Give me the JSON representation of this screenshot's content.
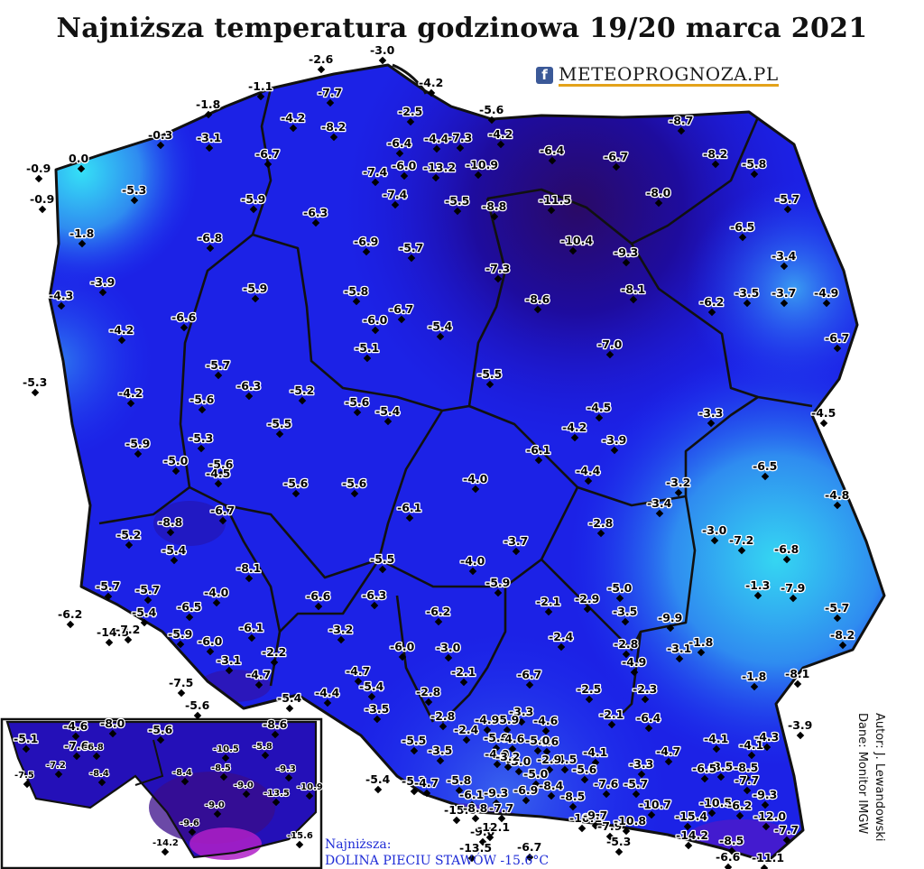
{
  "title": "Najniższa temperatura godzinowa 19/20 marca 2021",
  "logo": {
    "icon": "facebook-icon",
    "fb_glyph": "f",
    "text": "METEOPROGNOZA.PL"
  },
  "credit": {
    "author": "Autor: J. Lewandowski",
    "source": "Dane: Monitor IMGW"
  },
  "lowest": {
    "label": "Najniższa:",
    "value": "DOLINA PIECIU STAWÓW -15.6°C"
  },
  "colors": {
    "deep_purple": "#2a0a66",
    "dark_blue": "#1a0ad0",
    "blue": "#1d34f2",
    "light_blue": "#2f8cf0",
    "cyan": "#35d6f2",
    "magenta": "#b020c8",
    "border": "#111111"
  },
  "readings": [
    "-3.0",
    "-2.6",
    "-4.2",
    "-1.1",
    "-7.7",
    "-2.5",
    "-1.8",
    "-4.2",
    "-8.2",
    "-5.6",
    "-0.3",
    "-3.1",
    "-6.4",
    "-4.4",
    "-7.3",
    "-4.2",
    "-8.7",
    "-0.9",
    "0.0",
    "-6.7",
    "-8.2",
    "-5.8",
    "-7.4",
    "-6.0",
    "-13.2",
    "-10.9",
    "-6.4",
    "-6.7",
    "-5.3",
    "-0.9",
    "-5.9",
    "-7.4",
    "-5.5",
    "-8.8",
    "-11.5",
    "-8.0",
    "-5.7",
    "-6.3",
    "-1.8",
    "-6.8",
    "-6.9",
    "-5.7",
    "-10.4",
    "-9.3",
    "-6.5",
    "-3.4",
    "-3.9",
    "-7.3",
    "-4.3",
    "-5.9",
    "-5.8",
    "-6.7",
    "-8.6",
    "-8.1",
    "-6.2",
    "-3.5",
    "-3.7",
    "-4.9",
    "-6.6",
    "-6.0",
    "-5.4",
    "-4.2",
    "-6.7",
    "-5.1",
    "-7.0",
    "-5.7",
    "-5.3",
    "-5.5",
    "-6.3",
    "-5.2",
    "-4.2",
    "-5.6",
    "-5.6",
    "-5.4",
    "-4.5",
    "-3.3",
    "-4.5",
    "-4.2",
    "-3.9",
    "-5.5",
    "-5.3",
    "-5.9",
    "-6.1",
    "-5.0",
    "-4.4",
    "-5.6",
    "-6.5",
    "-4.5",
    "-5.6",
    "-5.6",
    "-3.2",
    "-3.4",
    "-4.8",
    "-6.7",
    "-8.8",
    "-6.1",
    "-4.0",
    "-2.8",
    "-3.0",
    "-7.2",
    "-5.2",
    "-5.4",
    "-3.7",
    "-6.8",
    "-8.1",
    "-5.5",
    "-4.0",
    "-2.9",
    "-1.3",
    "-7.9",
    "-5.7",
    "-5.7",
    "-6.2",
    "-5.9",
    "-6.3",
    "-6.2",
    "-4.0",
    "-2.1",
    "-5.7",
    "-6.6",
    "-6.5",
    "-5.0",
    "-3.5",
    "-9.9",
    "-14.5",
    "-7.2",
    "-5.4",
    "-3.2",
    "-2.4",
    "-8.2",
    "-5.9",
    "-6.1",
    "-6.0",
    "-3.0",
    "-2.8",
    "-3.1",
    "-6.0",
    "-3.1",
    "-4.9",
    "-2.2",
    "-1.8",
    "-1.8",
    "-8.1",
    "-7.5",
    "-4.7",
    "-4.7",
    "-6.7",
    "-2.1",
    "-2.5",
    "-2.3",
    "-6.4",
    "-5.6",
    "-5.4",
    "-4.4",
    "-5.4",
    "-2.8",
    "-3.3",
    "-3.9",
    "-3.5",
    "-4.6",
    "-2.8",
    "-5.9",
    "-2.1",
    "-4.1",
    "-4.9",
    "-2.4",
    "-4.1",
    "-4.3",
    "-5.6",
    "-4.6",
    "-4.6",
    "-5.5",
    "-4.0",
    "-3.0",
    "-5.0",
    "-4.1",
    "-4.5",
    "-3.5",
    "-3.2",
    "-2.9",
    "-3.3",
    "-4.7",
    "-3.5",
    "-6.5",
    "-5.4",
    "-8.5",
    "-5.1",
    "-4.7",
    "-5.8",
    "-5.6",
    "-5.0",
    "-7.7",
    "-6.1",
    "-9.3",
    "-6.9",
    "-7.6",
    "-10.5",
    "-8.4",
    "-8.5",
    "-5.7",
    "-9.3",
    "-15.0",
    "-8.8",
    "-7.7",
    "-10.1",
    "-9.7",
    "-7.9",
    "-9.0",
    "-10.7",
    "-6.2",
    "-12.0",
    "-12.1",
    "-10.8",
    "-15.4",
    "-14.2",
    "-8.5",
    "-7.7",
    "-13.5",
    "-6.7",
    "-5.3",
    "-6.6",
    "-11.1",
    "-5.1",
    "-4.6",
    "-8.0",
    "-5.6",
    "-8.6",
    "-7.6",
    "-6.8",
    "-10.5",
    "-5.8",
    "-7.5",
    "-7.2",
    "-8.4",
    "-8.4",
    "-8.5",
    "-9.3",
    "-9.0",
    "-13.5",
    "-10.9",
    "-9.0",
    "-9.6",
    "-15.6",
    "-14.2"
  ]
}
